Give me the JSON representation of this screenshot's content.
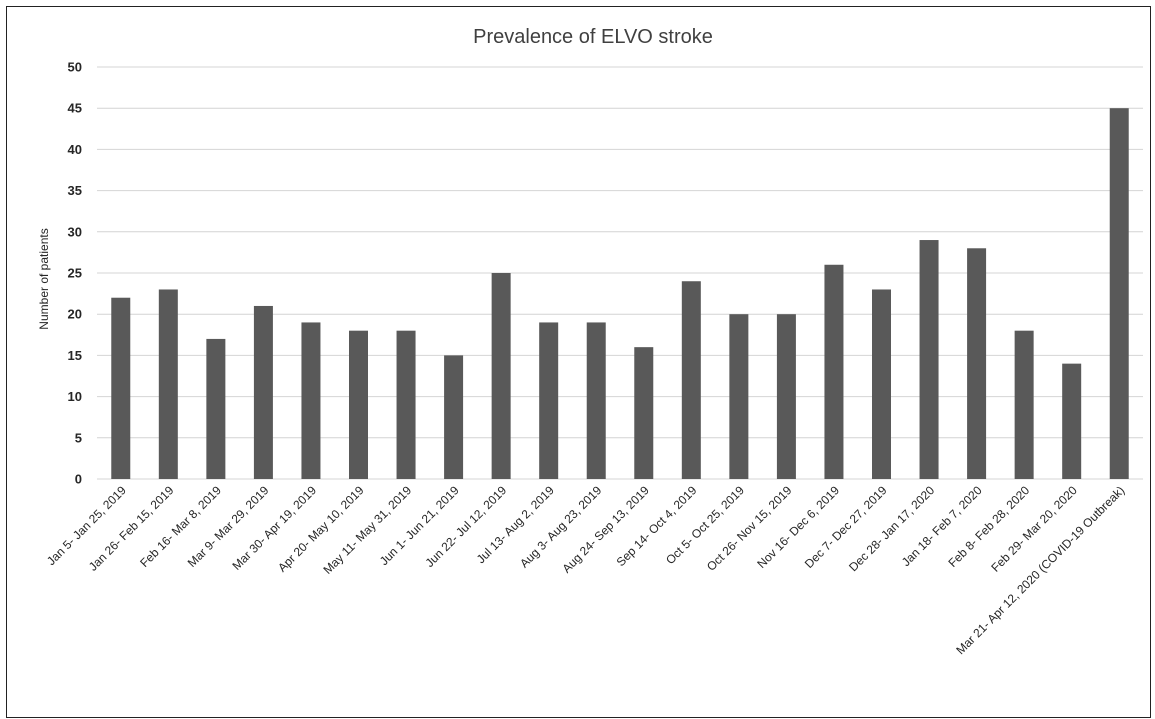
{
  "chart_data": {
    "type": "bar",
    "title": "Prevalence of ELVO stroke",
    "xlabel": "",
    "ylabel": "Number of patients",
    "ylim": [
      0,
      50
    ],
    "yticks": [
      0,
      5,
      10,
      15,
      20,
      25,
      30,
      35,
      40,
      45,
      50
    ],
    "grid": true,
    "bar_color": "#595959",
    "categories": [
      "Jan 5- Jan 25, 2019",
      "Jan 26- Feb 15, 2019",
      "Feb 16- Mar 8, 2019",
      "Mar 9- Mar 29, 2019",
      "Mar 30- Apr 19, 2019",
      "Apr 20- May 10, 2019",
      "May 11- May 31, 2019",
      "Jun 1- Jun 21, 2019",
      "Jun 22- Jul 12, 2019",
      "Jul 13- Aug 2, 2019",
      "Aug 3- Aug 23, 2019",
      "Aug 24- Sep 13, 2019",
      "Sep 14- Oct 4, 2019",
      "Oct 5- Oct 25, 2019",
      "Oct 26- Nov 15, 2019",
      "Nov 16- Dec 6, 2019",
      "Dec 7- Dec 27, 2019",
      "Dec 28- Jan 17, 2020",
      "Jan 18- Feb 7, 2020",
      "Feb 8- Feb 28, 2020",
      "Feb 29- Mar 20, 2020",
      "Mar 21- Apr 12, 2020  (COVID-19 Outbreak)"
    ],
    "values": [
      22,
      23,
      17,
      21,
      19,
      18,
      18,
      15,
      25,
      19,
      19,
      16,
      24,
      20,
      20,
      26,
      23,
      29,
      28,
      18,
      14,
      45
    ]
  }
}
